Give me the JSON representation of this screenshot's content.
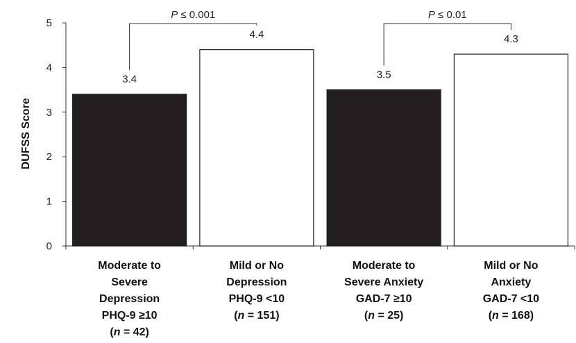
{
  "chart_data": {
    "type": "bar",
    "ylabel": "DUFSS Score",
    "ylim": [
      0,
      5
    ],
    "yticks": [
      "0",
      "1",
      "2",
      "3",
      "4",
      "5"
    ],
    "categories": [
      [
        "Moderate to",
        "Severe",
        "Depression",
        "PHQ-9 ≥10",
        "(n = 42)"
      ],
      [
        "Mild or No",
        "Depression",
        "PHQ-9 <10",
        "(n = 151)"
      ],
      [
        "Moderate to",
        "Severe Anxiety",
        "GAD-7 ≥10",
        "(n = 25)"
      ],
      [
        "Mild or No",
        "Anxiety",
        "GAD-7 <10",
        "(n = 168)"
      ]
    ],
    "values": [
      3.4,
      4.4,
      3.5,
      4.3
    ],
    "value_labels": [
      "3.4",
      "4.4",
      "3.5",
      "4.3"
    ],
    "bar_colors": [
      "#231f20",
      "#ffffff",
      "#231f20",
      "#ffffff"
    ],
    "significance": [
      {
        "between": [
          0,
          1
        ],
        "label": "P ≤ 0.001"
      },
      {
        "between": [
          2,
          3
        ],
        "label": "P ≤ 0.01"
      }
    ]
  }
}
